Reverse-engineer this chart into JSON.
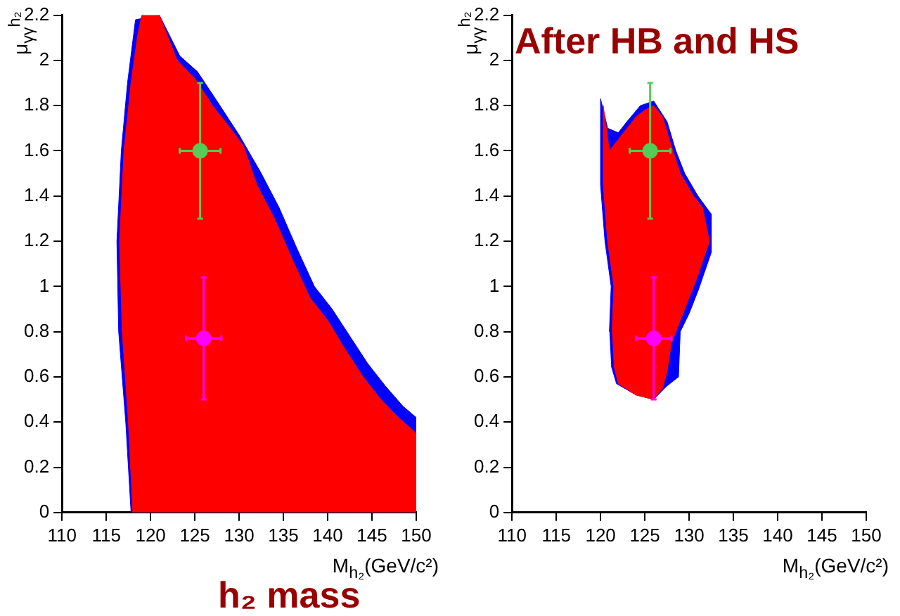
{
  "chart_data": [
    {
      "type": "scatter",
      "xlabel": "M$_{h₂}$(GeV/c²)",
      "ylabel": "μ$_{γγ}$$^{h₂}$",
      "annotations": [
        "h₂ mass"
      ],
      "xlim": [
        110,
        150
      ],
      "ylim": [
        0,
        2.2
      ],
      "xticks": [
        110,
        115,
        120,
        125,
        130,
        135,
        140,
        145,
        150
      ],
      "yticks": [
        0,
        0.2,
        0.4,
        0.6,
        0.8,
        1,
        1.2,
        1.4,
        1.6,
        1.8,
        2,
        2.2
      ],
      "grid": false,
      "series": [
        {
          "type": "area",
          "color": "#0000ff",
          "x": [
            117.8,
            117.2,
            116.4,
            116.2,
            116.7,
            117.4,
            118.3,
            121,
            123.3,
            125.3,
            127.5,
            130,
            132.5,
            134.5,
            136.5,
            138.5,
            140.5,
            142.5,
            144.5,
            146.5,
            148.5,
            150,
            150
          ],
          "values": [
            0,
            0.4,
            0.8,
            1.2,
            1.6,
            1.9,
            2.18,
            2.2,
            2.02,
            1.95,
            1.82,
            1.67,
            1.5,
            1.35,
            1.17,
            1,
            0.9,
            0.78,
            0.66,
            0.56,
            0.47,
            0.42,
            0
          ]
        },
        {
          "type": "area",
          "color": "#ff0000",
          "x": [
            118,
            117.5,
            116.8,
            116.5,
            117,
            117.8,
            118.5,
            119,
            121,
            123,
            125,
            127,
            129,
            130.5,
            132,
            134,
            136,
            138,
            140,
            142,
            144,
            146,
            148,
            150,
            150
          ],
          "values": [
            0,
            0.4,
            0.8,
            1.2,
            1.6,
            1.9,
            2.1,
            2.2,
            2.2,
            2,
            1.92,
            1.8,
            1.7,
            1.62,
            1.45,
            1.3,
            1.12,
            0.95,
            0.85,
            0.72,
            0.6,
            0.5,
            0.42,
            0.35,
            0
          ]
        },
        {
          "type": "scatter",
          "marker": "circle",
          "color": "#55cc55",
          "x": [
            125.6
          ],
          "values": [
            1.6
          ],
          "xerrors": [
            [
              123.3,
              127.9
            ]
          ],
          "errors": [
            [
              1.3,
              1.9
            ]
          ]
        },
        {
          "type": "scatter",
          "marker": "circle",
          "color": "#ff00ff",
          "x": [
            126
          ],
          "values": [
            0.77
          ],
          "xerrors": [
            [
              124,
              128
            ]
          ],
          "errors": [
            [
              0.5,
              1.04
            ]
          ]
        }
      ]
    },
    {
      "type": "scatter",
      "title": "After HB and HS",
      "xlabel": "M$_{h₂}$(GeV/c²)",
      "ylabel": "μ$_{γγ}$$^{h₂}$",
      "xlim": [
        110,
        150
      ],
      "ylim": [
        0,
        2.2
      ],
      "xticks": [
        110,
        115,
        120,
        125,
        130,
        135,
        140,
        145,
        150
      ],
      "yticks": [
        0,
        0.2,
        0.4,
        0.6,
        0.8,
        1,
        1.2,
        1.4,
        1.6,
        1.8,
        2,
        2.2
      ],
      "grid": false,
      "series": [
        {
          "type": "area",
          "color": "#0000ff",
          "x": [
            121,
            121.2,
            120.5,
            120,
            120,
            120.8,
            122,
            123,
            124.5,
            126,
            127.5,
            128.5,
            129.5,
            131,
            132.5,
            132.5,
            131,
            130,
            129,
            128.8,
            127.5,
            126,
            124,
            121.8,
            121.2
          ],
          "values": [
            0.8,
            1,
            1.2,
            1.45,
            1.83,
            1.7,
            1.68,
            1.73,
            1.8,
            1.82,
            1.73,
            1.6,
            1.5,
            1.4,
            1.32,
            1.15,
            0.98,
            0.88,
            0.8,
            0.6,
            0.56,
            0.5,
            0.52,
            0.57,
            0.65
          ]
        },
        {
          "type": "area",
          "color": "#ff0000",
          "x": [
            121.3,
            121.5,
            120.8,
            120.3,
            120.3,
            121,
            122,
            123,
            124,
            125,
            126,
            127,
            128,
            129,
            130.5,
            131.5,
            132.3,
            131,
            130,
            129,
            128,
            127.5,
            127,
            126,
            124,
            122,
            121.5
          ],
          "values": [
            0.8,
            1,
            1.2,
            1.45,
            1.8,
            1.6,
            1.65,
            1.7,
            1.75,
            1.78,
            1.8,
            1.75,
            1.62,
            1.5,
            1.4,
            1.35,
            1.2,
            1.05,
            0.95,
            0.85,
            0.75,
            0.62,
            0.55,
            0.5,
            0.52,
            0.57,
            0.65
          ]
        },
        {
          "type": "scatter",
          "marker": "circle",
          "color": "#55cc55",
          "x": [
            125.6
          ],
          "values": [
            1.6
          ],
          "xerrors": [
            [
              123.3,
              127.9
            ]
          ],
          "errors": [
            [
              1.3,
              1.9
            ]
          ]
        },
        {
          "type": "scatter",
          "marker": "circle",
          "color": "#ff00ff",
          "x": [
            126
          ],
          "values": [
            0.77
          ],
          "xerrors": [
            [
              124,
              128
            ]
          ],
          "errors": [
            [
              0.5,
              1.04
            ]
          ]
        }
      ]
    }
  ]
}
